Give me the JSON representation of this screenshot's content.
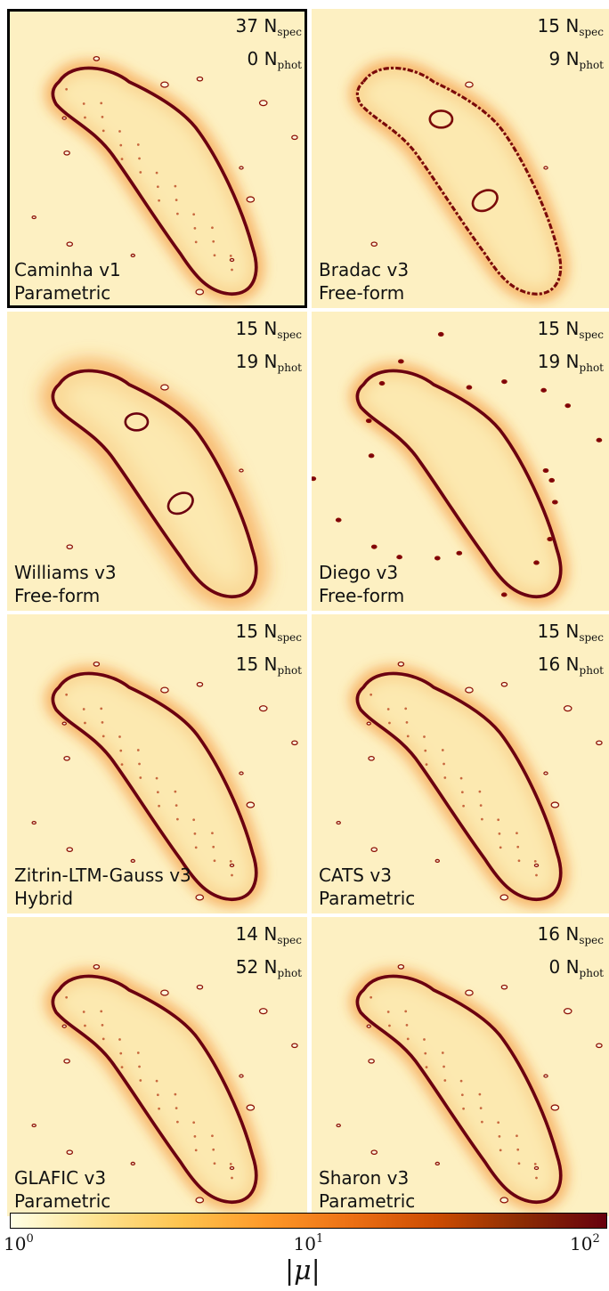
{
  "panels": [
    {
      "name": "Caminha v1",
      "type": "Parametric",
      "n_spec": "37",
      "n_phot": "0",
      "selected": true,
      "style": "smooth"
    },
    {
      "name": "Bradac v3",
      "type": "Free-form",
      "n_spec": "15",
      "n_phot": "9",
      "selected": false,
      "style": "noisy"
    },
    {
      "name": "Williams v3",
      "type": "Free-form",
      "n_spec": "15",
      "n_phot": "19",
      "selected": false,
      "style": "blobby"
    },
    {
      "name": "Diego v3",
      "type": "Free-form",
      "n_spec": "15",
      "n_phot": "19",
      "selected": false,
      "style": "clumpy"
    },
    {
      "name": "Zitrin-LTM-Gauss v3",
      "type": "Hybrid",
      "n_spec": "15",
      "n_phot": "15",
      "selected": false,
      "style": "smooth"
    },
    {
      "name": "CATS v3",
      "type": "Parametric",
      "n_spec": "15",
      "n_phot": "16",
      "selected": false,
      "style": "smooth"
    },
    {
      "name": "GLAFIC v3",
      "type": "Parametric",
      "n_spec": "14",
      "n_phot": "52",
      "selected": false,
      "style": "smooth"
    },
    {
      "name": "Sharon v3",
      "type": "Parametric",
      "n_spec": "16",
      "n_phot": "0",
      "selected": false,
      "style": "smooth"
    }
  ],
  "sub_spec": "spec",
  "sub_phot": "phot",
  "N": "N",
  "colorbar": {
    "label": "|μ|",
    "ticks": [
      {
        "base": "10",
        "exp": "0"
      },
      {
        "base": "10",
        "exp": "1"
      },
      {
        "base": "10",
        "exp": "2"
      }
    ],
    "scale": "log",
    "range": [
      1,
      100
    ],
    "colors": [
      "#ffffe5",
      "#fee391",
      "#fec44f",
      "#fe9929",
      "#ec7014",
      "#cc4c02",
      "#8c2d04",
      "#67000d"
    ]
  }
}
